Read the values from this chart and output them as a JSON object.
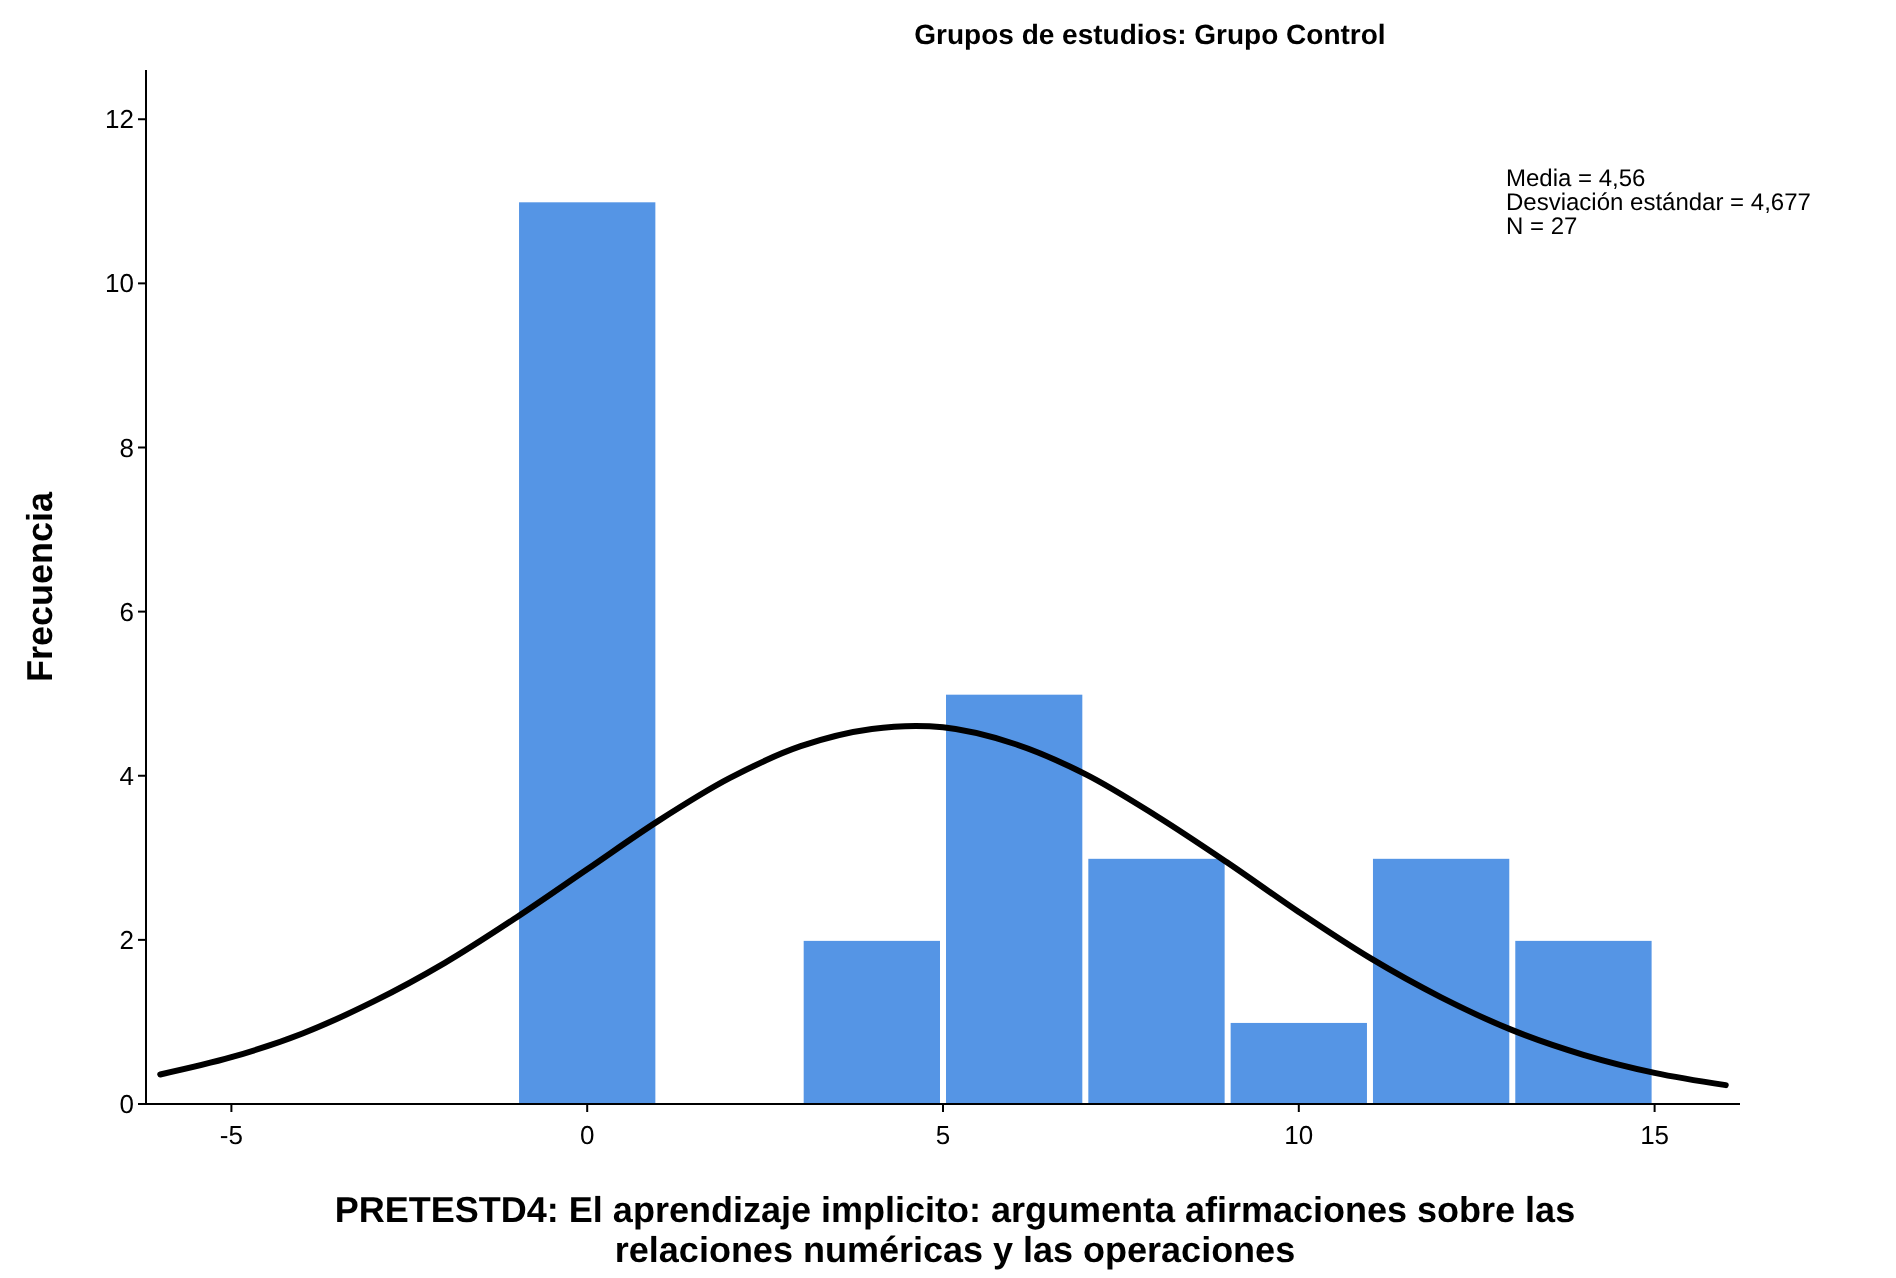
{
  "chart_data": {
    "type": "histogram",
    "title": "Grupos de estudios: Grupo Control",
    "xlabel": "PRETESTD4: El aprendizaje implicito: argumenta afirmaciones sobre las relaciones numéricas y las operaciones",
    "ylabel": "Frecuencia",
    "annotations": [
      "Media = 4,56",
      "Desviación estándar = 4,677",
      "N = 27"
    ],
    "xlim": [
      -6.2,
      16.2
    ],
    "xticks": [
      -5,
      0,
      5,
      10,
      15
    ],
    "ylim": [
      0,
      12.6
    ],
    "yticks": [
      0,
      2,
      4,
      6,
      8,
      10,
      12
    ],
    "grid": false,
    "series": [
      {
        "color": "#5595e5",
        "bins": [
          -1,
          1,
          3,
          5,
          7,
          9,
          11,
          13,
          15
        ],
        "values": [
          11,
          0,
          2,
          5,
          3,
          1,
          3,
          2
        ]
      },
      {
        "type": "line",
        "color": "#000000",
        "x": [
          -6,
          -5,
          -4,
          -3,
          -2,
          -1,
          0,
          1,
          2,
          3,
          4,
          5,
          6,
          7,
          8,
          9,
          10,
          11,
          12,
          13,
          14,
          15,
          16
        ],
        "values": [
          0.36,
          0.57,
          0.86,
          1.25,
          1.72,
          2.27,
          2.86,
          3.45,
          3.97,
          4.36,
          4.57,
          4.59,
          4.39,
          4.02,
          3.51,
          2.94,
          2.34,
          1.78,
          1.3,
          0.9,
          0.6,
          0.38,
          0.23
        ]
      }
    ]
  }
}
